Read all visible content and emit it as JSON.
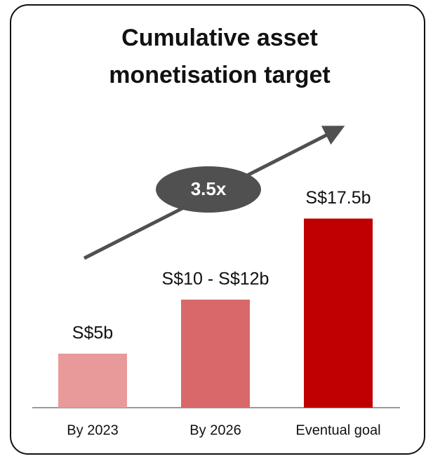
{
  "chart_data": {
    "type": "bar",
    "title": "Cumulative asset monetisation target",
    "categories": [
      "By 2023",
      "By 2026",
      "Eventual goal"
    ],
    "values": [
      5,
      10,
      17.5
    ],
    "value_labels": [
      "S$5b",
      "S$10 - S$12b",
      "S$17.5b"
    ],
    "colors": [
      "#e89a9a",
      "#d9686a",
      "#c00000"
    ],
    "ylim": [
      0,
      20
    ],
    "annotation": "3.5x"
  }
}
